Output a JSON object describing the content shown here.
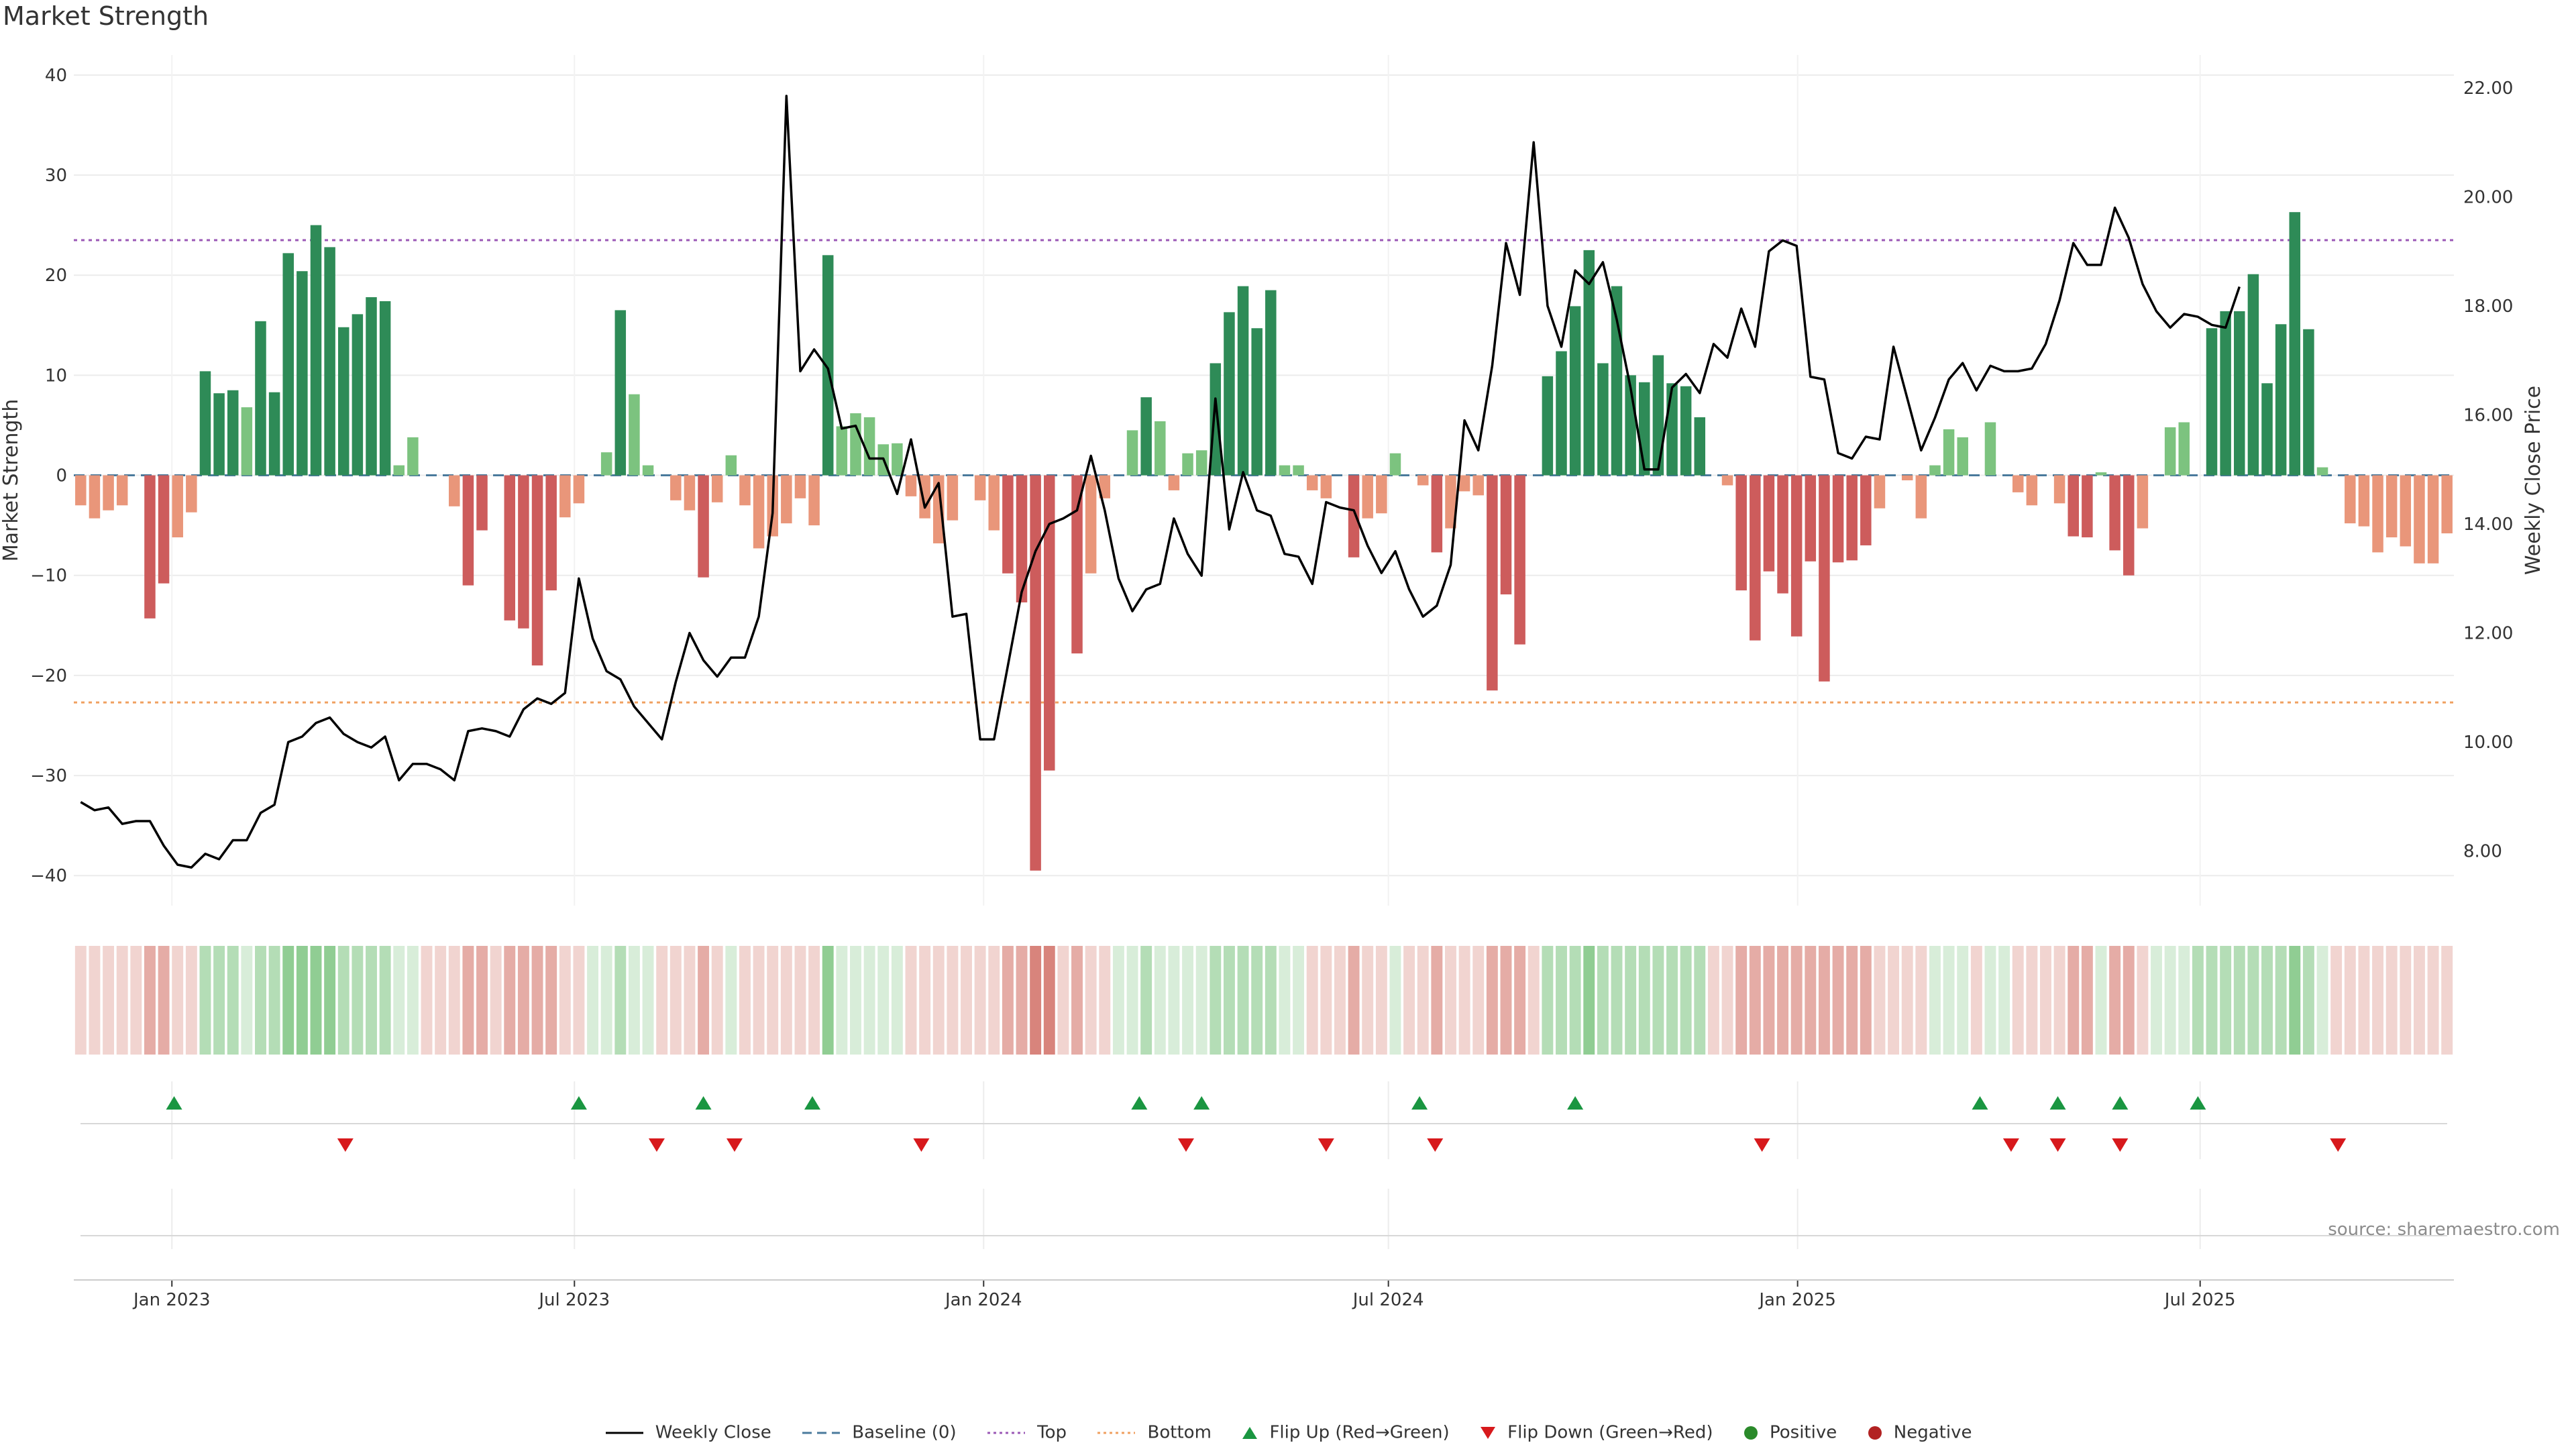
{
  "title": "Market Strength",
  "source": "source: sharemaestro.com",
  "colors": {
    "strong_green": "#2e8b57",
    "light_green": "#7cc37f",
    "strong_red": "#cd5c5c",
    "light_red": "#e9967a",
    "line": "#000000",
    "baseline": "#4a7a9c",
    "top": "#9b59b6",
    "bottom": "#f0a060",
    "flip_up": "#1a9641",
    "flip_down": "#d7191c"
  },
  "legend": [
    {
      "key": "weekly_close",
      "label": "Weekly Close",
      "icon": "solid-line"
    },
    {
      "key": "baseline",
      "label": "Baseline (0)",
      "icon": "dashed-line"
    },
    {
      "key": "top",
      "label": "Top",
      "icon": "dotted-line-purple"
    },
    {
      "key": "bottom",
      "label": "Bottom",
      "icon": "dotted-line-orange"
    },
    {
      "key": "flip_up",
      "label": "Flip Up (Red→Green)",
      "icon": "triangle-up"
    },
    {
      "key": "flip_down",
      "label": "Flip Down (Green→Red)",
      "icon": "triangle-down"
    },
    {
      "key": "positive",
      "label": "Positive",
      "icon": "dot-green"
    },
    {
      "key": "negative",
      "label": "Negative",
      "icon": "dot-red"
    }
  ],
  "chart_data": {
    "type": "bar",
    "title": "Market Strength",
    "ylabel": "Market Strength",
    "y2label": "Weekly Close Price",
    "ylim": [
      -43,
      42
    ],
    "y2lim": [
      7.0,
      22.6
    ],
    "yticks": [
      -40,
      -30,
      -20,
      -10,
      0,
      10,
      20,
      30,
      40
    ],
    "y2ticks": [
      8.0,
      10.0,
      12.0,
      14.0,
      16.0,
      18.0,
      20.0,
      22.0
    ],
    "x_start": "2022-11-21",
    "x_end": "2025-10-20",
    "xticks": [
      {
        "date": "2023-01-01",
        "label": "Jan 2023"
      },
      {
        "date": "2023-07-01",
        "label": "Jul 2023"
      },
      {
        "date": "2024-01-01",
        "label": "Jan 2024"
      },
      {
        "date": "2024-07-01",
        "label": "Jul 2024"
      },
      {
        "date": "2025-01-01",
        "label": "Jan 2025"
      },
      {
        "date": "2025-07-01",
        "label": "Jul 2025"
      }
    ],
    "top_line": 23.5,
    "bottom_line": -22.7,
    "grid": true,
    "legend_position": "bottom",
    "strength": [
      -3,
      -4.3,
      -3.5,
      -3,
      0,
      -14.3,
      -10.8,
      -6.2,
      -3.7,
      10.4,
      8.2,
      8.5,
      6.8,
      15.4,
      8.3,
      22.2,
      20.4,
      25,
      22.8,
      14.8,
      16.1,
      17.8,
      17.4,
      1,
      3.8,
      0,
      0,
      -3.1,
      -11,
      -5.5,
      0,
      -14.5,
      -15.3,
      -19,
      -11.5,
      -4.2,
      -2.8,
      0,
      2.3,
      16.5,
      8.1,
      1,
      0,
      -2.5,
      -3.5,
      -10.2,
      -2.7,
      2,
      -3,
      -7.3,
      -6.1,
      -4.8,
      -2.3,
      -5,
      22,
      4.9,
      6.2,
      5.8,
      3.1,
      3.2,
      -2.1,
      -4.3,
      -6.8,
      -4.5,
      0,
      -2.5,
      -5.5,
      -9.8,
      -12.7,
      -39.5,
      -29.5,
      0,
      -17.8,
      -9.8,
      -2.3,
      0,
      4.5,
      7.8,
      5.4,
      -1.5,
      2.2,
      2.5,
      11.2,
      16.3,
      18.9,
      14.7,
      18.5,
      1,
      1,
      -1.5,
      -2.3,
      0,
      -8.2,
      -4.3,
      -3.8,
      2.2,
      0,
      -1,
      -7.7,
      -5.3,
      -1.6,
      -2,
      -21.5,
      -11.9,
      -16.9,
      0,
      9.9,
      12.4,
      16.9,
      22.5,
      11.2,
      18.9,
      10,
      9.3,
      12,
      9.2,
      8.9,
      5.8,
      0,
      -1,
      -11.5,
      -16.5,
      -9.6,
      -11.8,
      -16.1,
      -8.6,
      -20.6,
      -8.7,
      -8.5,
      -7,
      -3.3,
      0,
      -0.5,
      -4.3,
      1,
      4.6,
      3.8,
      0,
      5.3,
      0,
      -1.7,
      -3,
      0,
      -2.8,
      -6.1,
      -6.2,
      0.3,
      -7.5,
      -10,
      -5.3,
      0,
      4.8,
      5.3,
      0,
      14.7,
      16.4,
      16.4,
      20.1,
      9.2,
      15.1,
      26.3,
      14.6,
      0.8,
      0,
      -4.8,
      -5.1,
      -7.7,
      -6.2,
      -7.1,
      -8.8,
      -8.8,
      -5.8
    ],
    "weekly_close": [
      8.9,
      8.75,
      8.8,
      8.5,
      8.55,
      8.55,
      8.1,
      7.75,
      7.7,
      7.95,
      7.85,
      8.2,
      8.2,
      8.7,
      8.85,
      10.0,
      10.1,
      10.35,
      10.45,
      10.15,
      10.0,
      9.9,
      10.1,
      9.3,
      9.6,
      9.6,
      9.5,
      9.3,
      10.2,
      10.25,
      10.2,
      10.1,
      10.6,
      10.8,
      10.7,
      10.9,
      13.0,
      11.9,
      11.3,
      11.15,
      10.65,
      10.35,
      10.05,
      11.1,
      12.0,
      11.5,
      11.2,
      11.55,
      11.55,
      12.3,
      14.2,
      21.85,
      16.8,
      17.2,
      16.85,
      15.75,
      15.8,
      15.2,
      15.2,
      14.55,
      15.55,
      14.3,
      14.75,
      12.3,
      12.35,
      10.05,
      10.05,
      11.4,
      12.75,
      13.5,
      14.0,
      14.1,
      14.25,
      15.25,
      14.25,
      13.0,
      12.4,
      12.8,
      12.9,
      14.1,
      13.45,
      13.05,
      16.3,
      13.9,
      14.95,
      14.25,
      14.15,
      13.45,
      13.4,
      12.9,
      14.4,
      14.3,
      14.25,
      13.6,
      13.1,
      13.5,
      12.8,
      12.3,
      12.5,
      13.25,
      15.9,
      15.35,
      16.9,
      19.15,
      18.2,
      21.0,
      18.0,
      17.25,
      18.65,
      18.4,
      18.8,
      17.75,
      16.5,
      15.0,
      15.0,
      16.5,
      16.75,
      16.4,
      17.3,
      17.05,
      17.95,
      17.25,
      19.0,
      19.2,
      19.1,
      16.7,
      16.65,
      15.3,
      15.2,
      15.6,
      15.55,
      17.25,
      16.3,
      15.35,
      15.95,
      16.65,
      16.95,
      16.45,
      16.9,
      16.8,
      16.8,
      16.85,
      17.3,
      18.1,
      19.15,
      18.75,
      18.75,
      19.8,
      19.25,
      18.4,
      17.9,
      17.6,
      17.85,
      17.8,
      17.65,
      17.6,
      18.35
    ],
    "regime": [
      -1,
      -1,
      -1,
      -1,
      -1,
      -2,
      -2,
      -1,
      -1,
      2,
      2,
      2,
      1,
      2,
      2,
      3,
      3,
      3,
      3,
      2,
      2,
      2,
      2,
      1,
      1,
      -1,
      -1,
      -1,
      -2,
      -2,
      -1,
      -2,
      -2,
      -2,
      -2,
      -1,
      -1,
      1,
      1,
      2,
      1,
      1,
      -1,
      -1,
      -1,
      -2,
      -1,
      1,
      -1,
      -1,
      -1,
      -1,
      -1,
      -1,
      3,
      1,
      1,
      1,
      1,
      1,
      -1,
      -1,
      -1,
      -1,
      -1,
      -1,
      -1,
      -2,
      -2,
      -3,
      -3,
      -1,
      -2,
      -1,
      -1,
      1,
      1,
      2,
      1,
      1,
      1,
      1,
      2,
      2,
      2,
      2,
      2,
      1,
      1,
      -1,
      -1,
      -1,
      -2,
      -1,
      -1,
      1,
      -1,
      -1,
      -2,
      -1,
      -1,
      -1,
      -2,
      -2,
      -2,
      -1,
      2,
      2,
      2,
      3,
      2,
      2,
      2,
      2,
      2,
      2,
      2,
      2,
      -1,
      -1,
      -2,
      -2,
      -2,
      -2,
      -2,
      -2,
      -2,
      -2,
      -2,
      -2,
      -1,
      -1,
      -1,
      -1,
      1,
      1,
      1,
      -1,
      1,
      1,
      -1,
      -1,
      -1,
      -1,
      -2,
      -2,
      1,
      -2,
      -2,
      -1,
      1,
      1,
      1,
      2,
      2,
      2,
      2,
      2,
      2,
      2,
      3,
      2,
      1,
      -1,
      -1,
      -1,
      -1,
      -1,
      -1,
      -1,
      -1,
      -1
    ],
    "flip_up_dates": [
      "2023-01-02",
      "2023-07-03",
      "2023-08-28",
      "2023-10-16",
      "2024-03-11",
      "2024-04-08",
      "2024-07-15",
      "2024-09-23",
      "2025-03-24",
      "2025-04-28",
      "2025-05-26",
      "2025-06-30"
    ],
    "flip_down_dates": [
      "2023-03-20",
      "2023-08-07",
      "2023-09-11",
      "2023-12-04",
      "2024-04-01",
      "2024-06-03",
      "2024-07-22",
      "2024-12-16",
      "2025-04-07",
      "2025-04-28",
      "2025-05-26",
      "2025-09-01"
    ]
  }
}
